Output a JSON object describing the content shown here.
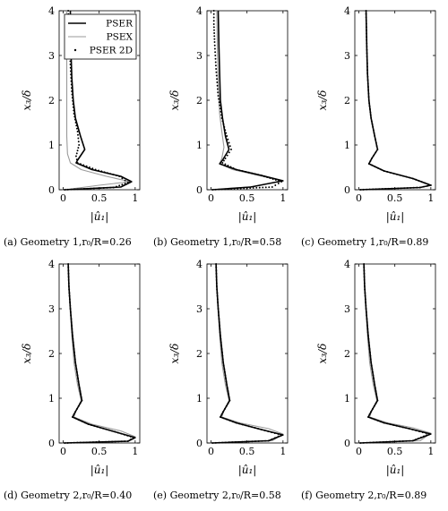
{
  "legend": [
    "PSER",
    "PSEX",
    "PSER 2D"
  ],
  "series_colors": {
    "PSER": "#000000",
    "PSEX": "#9a9a9a",
    "PSER 2D": "#000000"
  },
  "xlabel": "|û₁|",
  "ylabel": "x₃/δ",
  "chart_data": [
    {
      "type": "line",
      "caption": "(a) Geometry 1,r₀/R=0.26",
      "xlabel": "|û₁|",
      "ylabel": "x₃/δ",
      "xlim": [
        0,
        1
      ],
      "ylim": [
        0,
        4
      ],
      "xticks": [
        "0",
        "0.5",
        "1"
      ],
      "yticks": [
        "0",
        "1",
        "2",
        "3",
        "4"
      ],
      "series": [
        {
          "name": "PSER",
          "style": "solid",
          "x": [
            0.02,
            0.8,
            0.95,
            0.8,
            0.4,
            0.18,
            0.2,
            0.3,
            0.24,
            0.17,
            0.14,
            0.12,
            0.11,
            0.1,
            0.1
          ],
          "y": [
            0.0,
            0.06,
            0.18,
            0.3,
            0.45,
            0.6,
            0.66,
            0.9,
            1.2,
            1.6,
            2.0,
            2.5,
            3.0,
            3.5,
            4.0
          ]
        },
        {
          "name": "PSEX",
          "style": "solid",
          "x": [
            0.02,
            0.5,
            0.93,
            0.6,
            0.25,
            0.1,
            0.06,
            0.05,
            0.05,
            0.05,
            0.05,
            0.05
          ],
          "y": [
            0.0,
            0.1,
            0.18,
            0.3,
            0.45,
            0.6,
            0.8,
            1.2,
            2.0,
            3.0,
            3.5,
            4.0
          ]
        },
        {
          "name": "PSER 2D",
          "style": "dots",
          "x": [
            0.02,
            0.7,
            0.9,
            0.78,
            0.45,
            0.2,
            0.18,
            0.22,
            0.2,
            0.15,
            0.12,
            0.1,
            0.09,
            0.08,
            0.07
          ],
          "y": [
            0.0,
            0.05,
            0.16,
            0.3,
            0.45,
            0.6,
            0.75,
            1.0,
            1.3,
            1.7,
            2.2,
            2.8,
            3.3,
            3.7,
            4.0
          ]
        }
      ]
    },
    {
      "type": "line",
      "caption": "(b) Geometry 1,r₀/R=0.58",
      "xlabel": "|û₁|",
      "ylabel": "x₃/δ",
      "xlim": [
        0,
        1
      ],
      "ylim": [
        0,
        4
      ],
      "xticks": [
        "0",
        "0.5",
        "1"
      ],
      "yticks": [
        "0",
        "1",
        "2",
        "3",
        "4"
      ],
      "series": [
        {
          "name": "PSER",
          "style": "solid",
          "x": [
            0.02,
            0.55,
            1.0,
            0.7,
            0.35,
            0.12,
            0.16,
            0.25,
            0.2,
            0.16,
            0.13,
            0.12,
            0.11,
            0.1
          ],
          "y": [
            0.0,
            0.06,
            0.2,
            0.32,
            0.45,
            0.58,
            0.66,
            0.9,
            1.2,
            1.6,
            2.0,
            2.6,
            3.2,
            4.0
          ]
        },
        {
          "name": "PSEX",
          "style": "solid",
          "x": [
            0.02,
            0.6,
            0.98,
            0.65,
            0.3,
            0.12,
            0.15,
            0.18,
            0.15,
            0.12,
            0.1,
            0.09,
            0.08
          ],
          "y": [
            0.0,
            0.07,
            0.2,
            0.32,
            0.45,
            0.58,
            0.7,
            0.95,
            1.3,
            1.7,
            2.3,
            3.0,
            4.0
          ]
        },
        {
          "name": "PSER 2D",
          "style": "dots",
          "x": [
            0.02,
            0.85,
            0.98,
            0.7,
            0.35,
            0.16,
            0.2,
            0.28,
            0.22,
            0.15,
            0.1,
            0.07,
            0.05,
            0.04,
            0.04
          ],
          "y": [
            0.0,
            0.06,
            0.18,
            0.32,
            0.45,
            0.6,
            0.7,
            0.9,
            1.2,
            1.6,
            2.1,
            2.7,
            3.3,
            3.7,
            4.0
          ]
        }
      ]
    },
    {
      "type": "line",
      "caption": "(c) Geometry 1,r₀/R=0.89",
      "xlabel": "|û₁|",
      "ylabel": "x₃/δ",
      "xlim": [
        0,
        1
      ],
      "ylim": [
        0,
        4
      ],
      "xticks": [
        "0",
        "0.5",
        "1"
      ],
      "yticks": [
        "0",
        "1",
        "2",
        "3",
        "4"
      ],
      "series": [
        {
          "name": "PSER",
          "style": "solid",
          "x": [
            0.02,
            0.85,
            1.0,
            0.75,
            0.35,
            0.14,
            0.18,
            0.26,
            0.22,
            0.17,
            0.14,
            0.12,
            0.11,
            0.1
          ],
          "y": [
            0.0,
            0.05,
            0.1,
            0.25,
            0.42,
            0.58,
            0.7,
            0.9,
            1.2,
            1.6,
            2.0,
            2.6,
            3.2,
            4.0
          ]
        },
        {
          "name": "PSEX",
          "style": "solid",
          "x": [
            0.02,
            0.85,
            1.0,
            0.75,
            0.35,
            0.14,
            0.18,
            0.26,
            0.22,
            0.17,
            0.14,
            0.12,
            0.11,
            0.1
          ],
          "y": [
            0.0,
            0.05,
            0.1,
            0.25,
            0.42,
            0.58,
            0.7,
            0.9,
            1.2,
            1.6,
            2.0,
            2.6,
            3.2,
            4.0
          ]
        },
        {
          "name": "PSER 2D",
          "style": "dots",
          "x": [
            0.02,
            0.85,
            1.0,
            0.75,
            0.35,
            0.14,
            0.18,
            0.26,
            0.22,
            0.17,
            0.14,
            0.12,
            0.11,
            0.1
          ],
          "y": [
            0.0,
            0.05,
            0.1,
            0.25,
            0.42,
            0.58,
            0.7,
            0.9,
            1.2,
            1.6,
            2.0,
            2.6,
            3.2,
            4.0
          ]
        }
      ]
    },
    {
      "type": "line",
      "caption": "(d) Geometry 2,r₀/R=0.40",
      "xlabel": "|û₁|",
      "ylabel": "x₃/δ",
      "xlim": [
        0,
        1
      ],
      "ylim": [
        0,
        4
      ],
      "xticks": [
        "0",
        "0.5",
        "1"
      ],
      "yticks": [
        "0",
        "1",
        "2",
        "3",
        "4"
      ],
      "series": [
        {
          "name": "PSER",
          "style": "solid",
          "x": [
            0.02,
            0.9,
            1.0,
            0.72,
            0.35,
            0.13,
            0.17,
            0.26,
            0.22,
            0.17,
            0.13,
            0.1,
            0.08,
            0.07
          ],
          "y": [
            0.0,
            0.04,
            0.12,
            0.25,
            0.42,
            0.58,
            0.7,
            0.95,
            1.3,
            1.8,
            2.4,
            3.0,
            3.5,
            4.0
          ]
        },
        {
          "name": "PSEX",
          "style": "solid",
          "x": [
            0.02,
            0.9,
            1.0,
            0.8,
            0.4,
            0.15,
            0.18,
            0.25,
            0.2,
            0.15,
            0.12,
            0.1,
            0.08,
            0.07
          ],
          "y": [
            0.0,
            0.04,
            0.14,
            0.27,
            0.42,
            0.58,
            0.72,
            0.95,
            1.3,
            1.8,
            2.4,
            3.0,
            3.5,
            4.0
          ]
        },
        {
          "name": "PSER 2D",
          "style": "dots",
          "x": [
            0.02,
            0.9,
            0.98,
            0.72,
            0.35,
            0.13,
            0.17,
            0.26,
            0.22,
            0.17,
            0.13,
            0.1,
            0.08,
            0.07
          ],
          "y": [
            0.0,
            0.04,
            0.12,
            0.25,
            0.42,
            0.58,
            0.7,
            0.95,
            1.3,
            1.8,
            2.4,
            3.0,
            3.5,
            4.0
          ]
        }
      ]
    },
    {
      "type": "line",
      "caption": "(e) Geometry 2,r₀/R=0.58",
      "xlabel": "|û₁|",
      "ylabel": "x₃/δ",
      "xlim": [
        0,
        1
      ],
      "ylim": [
        0,
        4
      ],
      "xticks": [
        "0",
        "0.5",
        "1"
      ],
      "yticks": [
        "0",
        "1",
        "2",
        "3",
        "4"
      ],
      "series": [
        {
          "name": "PSER",
          "style": "solid",
          "x": [
            0.02,
            0.8,
            1.0,
            0.7,
            0.35,
            0.13,
            0.17,
            0.26,
            0.22,
            0.17,
            0.13,
            0.1,
            0.08,
            0.07
          ],
          "y": [
            0.0,
            0.05,
            0.18,
            0.3,
            0.45,
            0.58,
            0.7,
            0.95,
            1.3,
            1.8,
            2.4,
            3.0,
            3.5,
            4.0
          ]
        },
        {
          "name": "PSEX",
          "style": "solid",
          "x": [
            0.02,
            0.85,
            1.0,
            0.8,
            0.4,
            0.15,
            0.18,
            0.25,
            0.2,
            0.15,
            0.12,
            0.1,
            0.08,
            0.07
          ],
          "y": [
            0.0,
            0.05,
            0.2,
            0.32,
            0.45,
            0.58,
            0.72,
            0.95,
            1.3,
            1.8,
            2.4,
            3.0,
            3.5,
            4.0
          ]
        },
        {
          "name": "PSER 2D",
          "style": "dots",
          "x": [
            0.02,
            0.8,
            0.98,
            0.7,
            0.35,
            0.13,
            0.17,
            0.26,
            0.22,
            0.17,
            0.13,
            0.1,
            0.08,
            0.07
          ],
          "y": [
            0.0,
            0.05,
            0.18,
            0.3,
            0.45,
            0.58,
            0.7,
            0.95,
            1.3,
            1.8,
            2.4,
            3.0,
            3.5,
            4.0
          ]
        }
      ]
    },
    {
      "type": "line",
      "caption": "(f) Geometry 2,r₀/R=0.89",
      "xlabel": "|û₁|",
      "ylabel": "x₃/δ",
      "xlim": [
        0,
        1
      ],
      "ylim": [
        0,
        4
      ],
      "xticks": [
        "0",
        "0.5",
        "1"
      ],
      "yticks": [
        "0",
        "1",
        "2",
        "3",
        "4"
      ],
      "series": [
        {
          "name": "PSER",
          "style": "solid",
          "x": [
            0.02,
            0.75,
            1.0,
            0.7,
            0.35,
            0.13,
            0.17,
            0.26,
            0.22,
            0.17,
            0.13,
            0.1,
            0.08,
            0.07
          ],
          "y": [
            0.0,
            0.05,
            0.2,
            0.32,
            0.45,
            0.58,
            0.7,
            0.95,
            1.3,
            1.8,
            2.4,
            3.0,
            3.5,
            4.0
          ]
        },
        {
          "name": "PSEX",
          "style": "solid",
          "x": [
            0.02,
            0.85,
            1.0,
            0.75,
            0.4,
            0.15,
            0.18,
            0.25,
            0.2,
            0.15,
            0.12,
            0.1,
            0.08,
            0.07
          ],
          "y": [
            0.0,
            0.05,
            0.22,
            0.34,
            0.45,
            0.58,
            0.72,
            0.95,
            1.3,
            1.8,
            2.4,
            3.0,
            3.5,
            4.0
          ]
        },
        {
          "name": "PSER 2D",
          "style": "dots",
          "x": [
            0.02,
            0.75,
            0.98,
            0.7,
            0.35,
            0.13,
            0.17,
            0.26,
            0.22,
            0.17,
            0.13,
            0.1,
            0.08,
            0.07
          ],
          "y": [
            0.0,
            0.05,
            0.2,
            0.32,
            0.45,
            0.58,
            0.7,
            0.95,
            1.3,
            1.8,
            2.4,
            3.0,
            3.5,
            4.0
          ]
        }
      ]
    }
  ]
}
